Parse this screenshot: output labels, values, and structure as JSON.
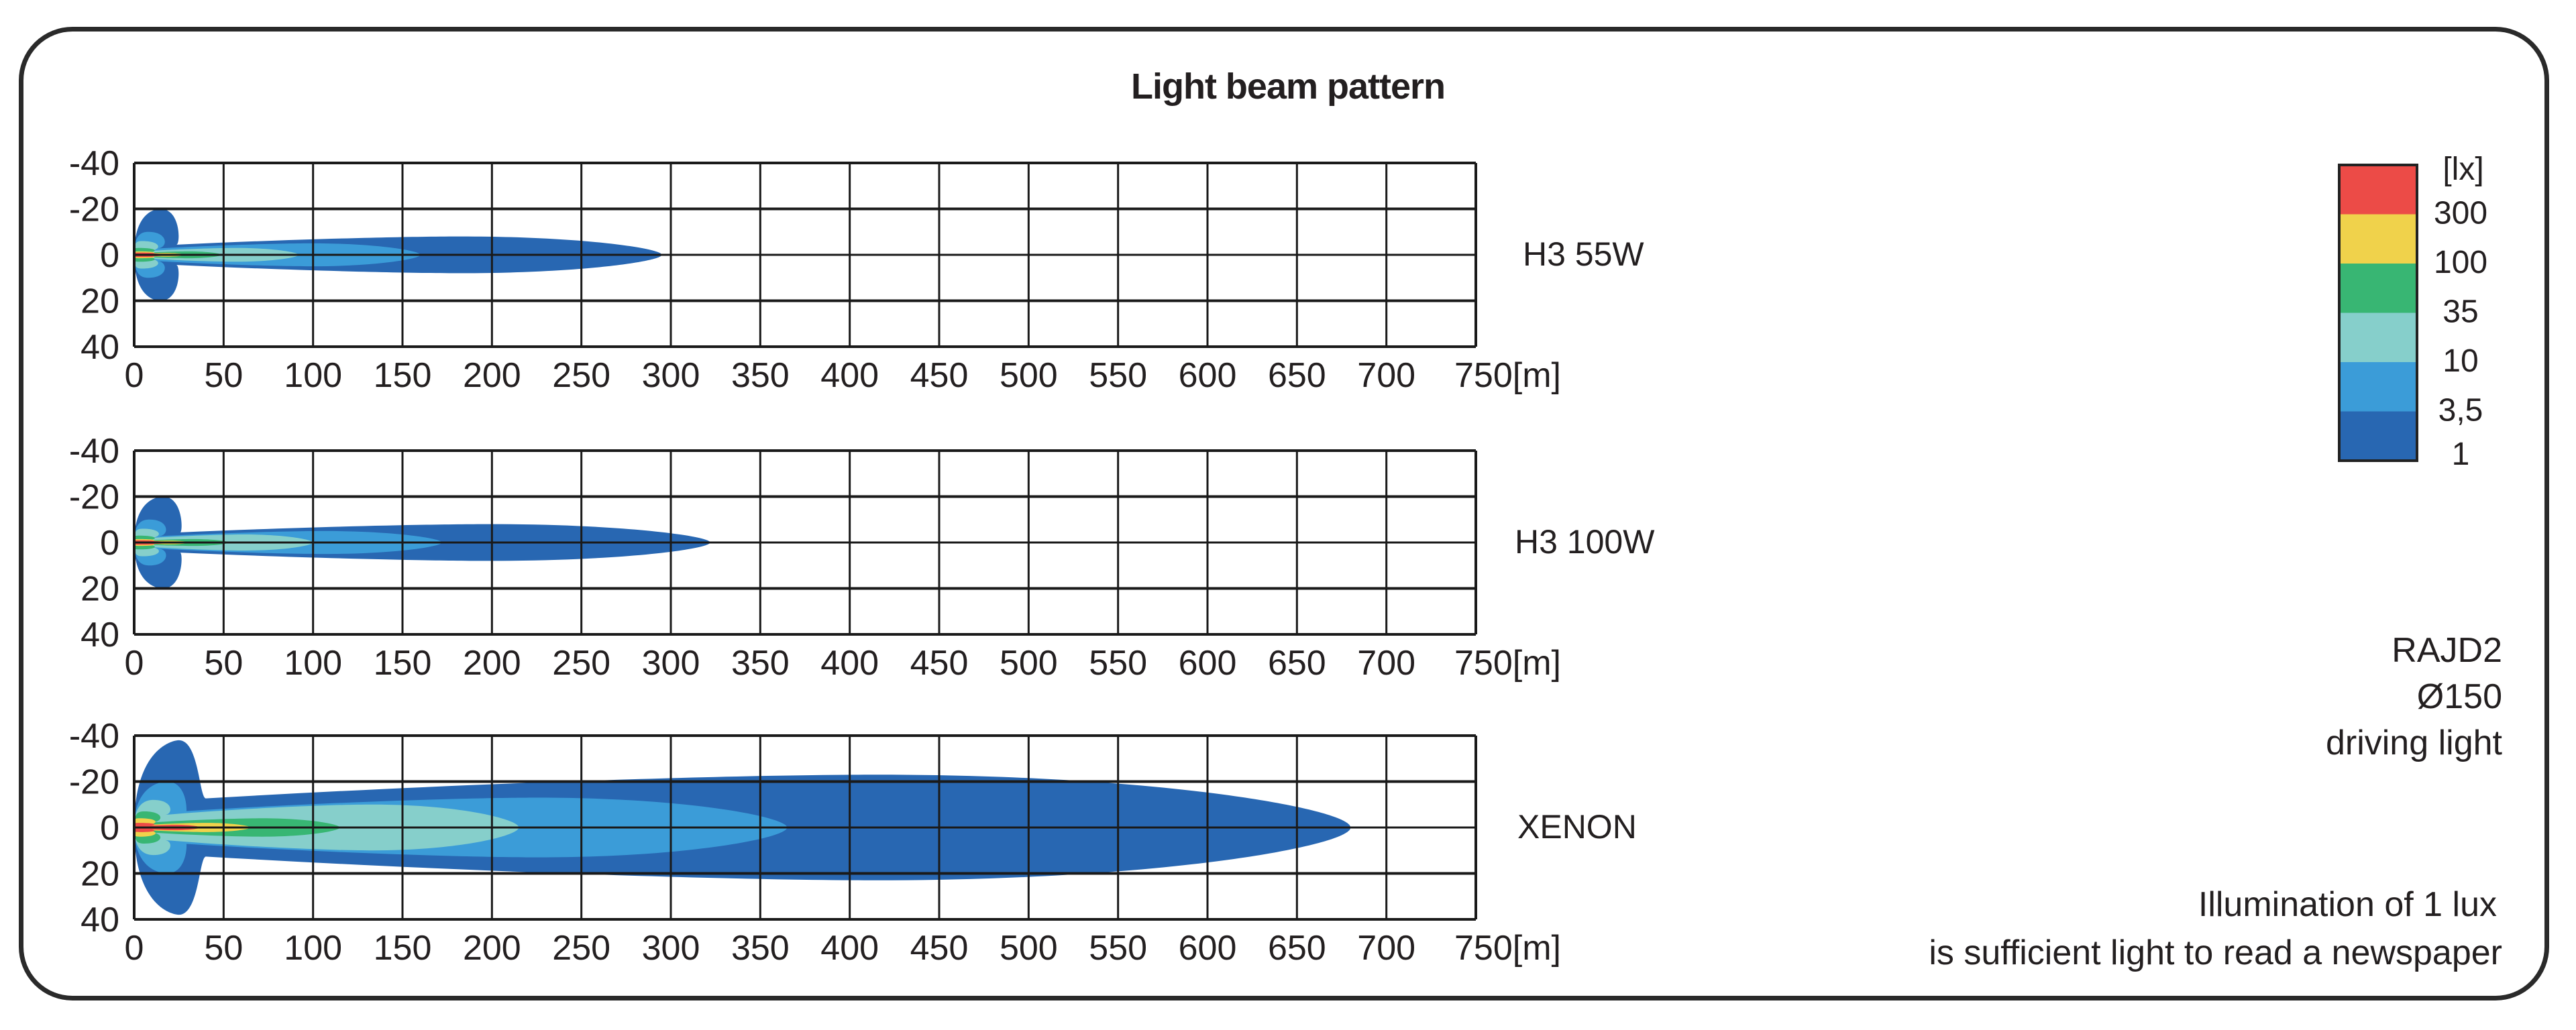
{
  "title": "Light beam pattern",
  "product": {
    "model": "RAJD2",
    "diameter": "Ø150",
    "type": "driving light"
  },
  "note": {
    "line1": "Illumination of 1 lux",
    "line2": "is sufficient light to read a newspaper"
  },
  "legend": {
    "unit": "[lx]",
    "bands": [
      {
        "label": "300",
        "color": "#EC4B47"
      },
      {
        "label": "100",
        "color": "#F0D24B"
      },
      {
        "label": "35",
        "color": "#38B673"
      },
      {
        "label": "10",
        "color": "#86CFCB"
      },
      {
        "label": "3,5",
        "color": "#3B9CD8"
      },
      {
        "label": "1",
        "color": "#2867B2"
      }
    ]
  },
  "axes": {
    "x_ticks": [
      "0",
      "50",
      "100",
      "150",
      "200",
      "250",
      "300",
      "350",
      "400",
      "450",
      "500",
      "550",
      "600",
      "650",
      "700",
      "750[m]"
    ],
    "y_ticks": [
      "-40",
      "-20",
      "0",
      "20",
      "40"
    ]
  },
  "chart_data": {
    "type": "heatmap",
    "title": "Light beam pattern",
    "xlabel": "[m]",
    "ylabel": "",
    "xlim": [
      0,
      750
    ],
    "ylim": [
      -40,
      40
    ],
    "grid": true,
    "legend_position": "right",
    "isolux_levels_lx": [
      1,
      3.5,
      10,
      35,
      100,
      300
    ],
    "series": [
      {
        "name": "H3 55W",
        "contours": [
          {
            "lux": 1,
            "reach_m": 295,
            "max_half_width_m": 8,
            "near_lobe_half_width_m": 20
          },
          {
            "lux": 3.5,
            "reach_m": 160,
            "max_half_width_m": 5,
            "near_lobe_half_width_m": 10
          },
          {
            "lux": 10,
            "reach_m": 92,
            "max_half_width_m": 3,
            "near_lobe_half_width_m": 6
          },
          {
            "lux": 35,
            "reach_m": 49,
            "max_half_width_m": 1.5,
            "near_lobe_half_width_m": 3
          },
          {
            "lux": 100,
            "reach_m": 29,
            "max_half_width_m": 0.8,
            "near_lobe_half_width_m": 1.5
          },
          {
            "lux": 300,
            "reach_m": 17,
            "max_half_width_m": 0.6,
            "near_lobe_half_width_m": 1
          }
        ]
      },
      {
        "name": "H3 100W",
        "contours": [
          {
            "lux": 1,
            "reach_m": 322,
            "max_half_width_m": 8,
            "near_lobe_half_width_m": 20
          },
          {
            "lux": 3.5,
            "reach_m": 172,
            "max_half_width_m": 5,
            "near_lobe_half_width_m": 10
          },
          {
            "lux": 10,
            "reach_m": 100,
            "max_half_width_m": 3.5,
            "near_lobe_half_width_m": 6
          },
          {
            "lux": 35,
            "reach_m": 53,
            "max_half_width_m": 1.5,
            "near_lobe_half_width_m": 3
          },
          {
            "lux": 100,
            "reach_m": 31,
            "max_half_width_m": 0.8,
            "near_lobe_half_width_m": 1.5
          },
          {
            "lux": 300,
            "reach_m": 18,
            "max_half_width_m": 0.6,
            "near_lobe_half_width_m": 1
          }
        ]
      },
      {
        "name": "XENON",
        "contours": [
          {
            "lux": 1,
            "reach_m": 680,
            "max_half_width_m": 23,
            "near_lobe_half_width_m": 38
          },
          {
            "lux": 3.5,
            "reach_m": 365,
            "max_half_width_m": 13,
            "near_lobe_half_width_m": 20
          },
          {
            "lux": 10,
            "reach_m": 215,
            "max_half_width_m": 10,
            "near_lobe_half_width_m": 12
          },
          {
            "lux": 35,
            "reach_m": 115,
            "max_half_width_m": 4,
            "near_lobe_half_width_m": 7
          },
          {
            "lux": 100,
            "reach_m": 65,
            "max_half_width_m": 2,
            "near_lobe_half_width_m": 4
          },
          {
            "lux": 300,
            "reach_m": 37,
            "max_half_width_m": 1.2,
            "near_lobe_half_width_m": 2
          }
        ]
      }
    ]
  }
}
